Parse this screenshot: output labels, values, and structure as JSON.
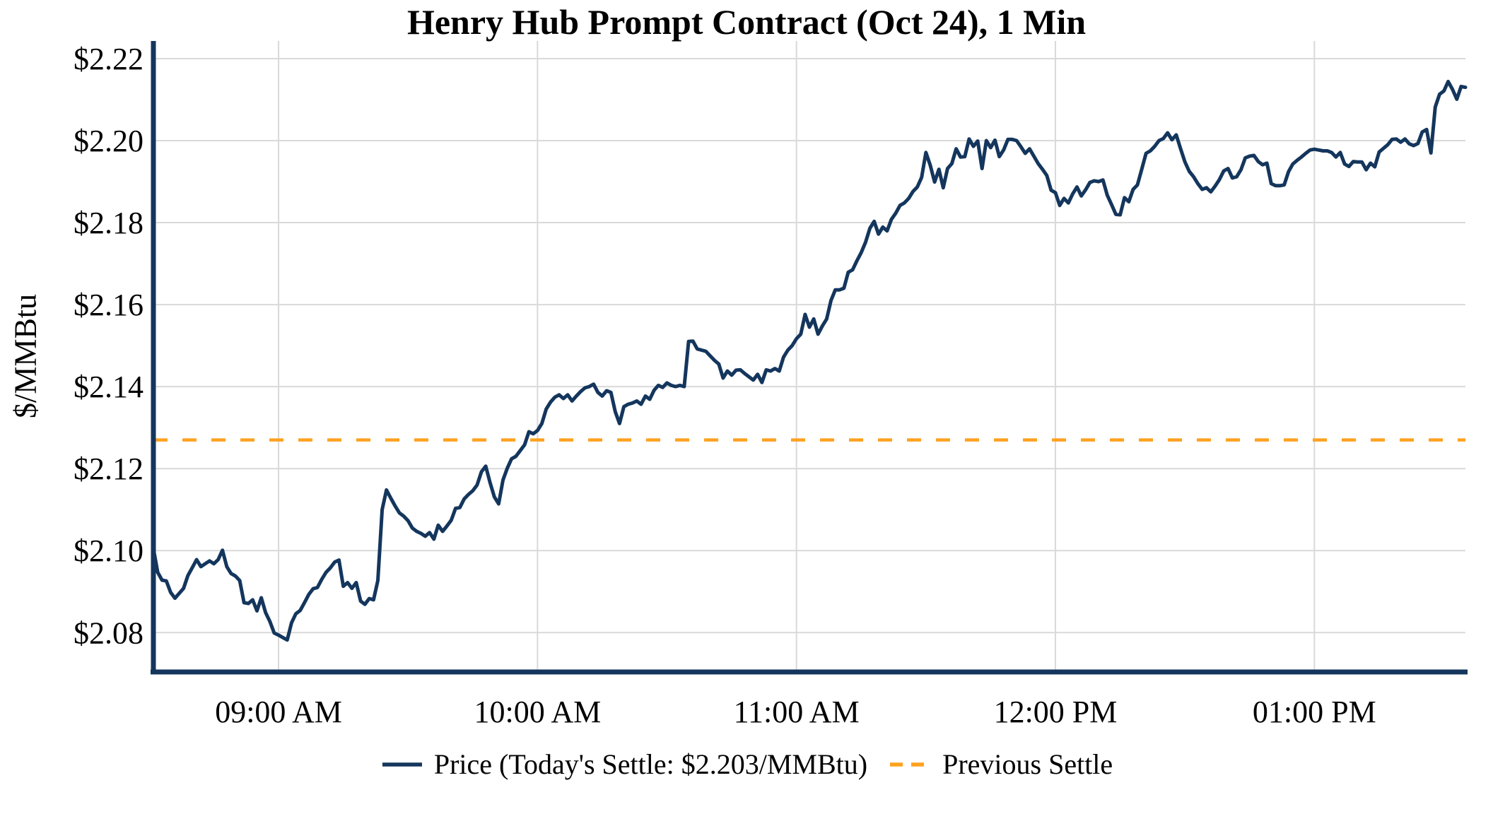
{
  "title": "Henry Hub Prompt Contract (Oct 24), 1 Min",
  "y_axis_label": "$/MMBtu",
  "legend": {
    "price_label": "Price (Today's Settle: $2.203/MMBtu)",
    "previous_settle_label": "Previous Settle"
  },
  "colors": {
    "price_line": "#14365D",
    "previous_settle_line": "#FFA11E",
    "gridline": "#D9D9D9",
    "axis_spine": "#14365D",
    "text": "#000000",
    "background": "#FFFFFF"
  },
  "chart_data": {
    "type": "line",
    "title": "Henry Hub Prompt Contract (Oct 24), 1 Min",
    "xlabel": "",
    "ylabel": "$/MMBtu",
    "grid": true,
    "legend_position": "bottom-center",
    "today_settle_value": 2.203,
    "previous_settle_value": 2.127,
    "ylim": [
      2.0704,
      2.2243
    ],
    "xlim_minutes_of_day": [
      511,
      815
    ],
    "x_ticks": [
      {
        "label": "09:00 AM",
        "minute": 540
      },
      {
        "label": "10:00 AM",
        "minute": 600
      },
      {
        "label": "11:00 AM",
        "minute": 660
      },
      {
        "label": "12:00 PM",
        "minute": 720
      },
      {
        "label": "01:00 PM",
        "minute": 780
      }
    ],
    "y_ticks": [
      {
        "label": "$2.08",
        "value": 2.08
      },
      {
        "label": "$2.10",
        "value": 2.1
      },
      {
        "label": "$2.12",
        "value": 2.12
      },
      {
        "label": "$2.14",
        "value": 2.14
      },
      {
        "label": "$2.16",
        "value": 2.16
      },
      {
        "label": "$2.18",
        "value": 2.18
      },
      {
        "label": "$2.20",
        "value": 2.2
      },
      {
        "label": "$2.22",
        "value": 2.22
      }
    ],
    "series": [
      {
        "name": "Price",
        "kind": "line",
        "start_time_label": "08:31 AM",
        "end_time_label": "01:35 PM",
        "start_minute_of_day": 511,
        "interval_minutes": 1,
        "values": [
          2.1005,
          2.0947,
          2.0928,
          2.0926,
          2.0898,
          2.0884,
          2.0896,
          2.0908,
          2.0939,
          2.0958,
          2.0978,
          2.0961,
          2.0968,
          2.0975,
          2.0968,
          2.0978,
          2.1001,
          2.0961,
          2.0944,
          2.0938,
          2.0927,
          2.0873,
          2.0871,
          2.088,
          2.0853,
          2.0885,
          2.0849,
          2.0827,
          2.0799,
          2.0794,
          2.0788,
          2.0782,
          2.0824,
          2.0846,
          2.0854,
          2.0873,
          2.0893,
          2.0907,
          2.091,
          2.093,
          2.0947,
          2.0958,
          2.0972,
          2.0977,
          2.0913,
          2.0922,
          2.0908,
          2.0922,
          2.0877,
          2.0869,
          2.0883,
          2.088,
          2.0927,
          2.11,
          2.1148,
          2.1128,
          2.1109,
          2.1092,
          2.1084,
          2.1073,
          2.1055,
          2.1047,
          2.1042,
          2.1035,
          2.1044,
          2.1028,
          2.1062,
          2.1047,
          2.106,
          2.1074,
          2.1103,
          2.1105,
          2.1126,
          2.1137,
          2.1146,
          2.116,
          2.1192,
          2.1206,
          2.1166,
          2.1131,
          2.1114,
          2.1172,
          2.1201,
          2.1224,
          2.123,
          2.1244,
          2.1258,
          2.129,
          2.1285,
          2.1293,
          2.131,
          2.1345,
          2.1362,
          2.1374,
          2.138,
          2.1371,
          2.138,
          2.1365,
          2.1377,
          2.1388,
          2.1397,
          2.14,
          2.1406,
          2.1386,
          2.1377,
          2.139,
          2.1386,
          2.1339,
          2.131,
          2.1351,
          2.1357,
          2.136,
          2.1365,
          2.1357,
          2.1377,
          2.1369,
          2.1391,
          2.1403,
          2.1398,
          2.1409,
          2.1403,
          2.14,
          2.1403,
          2.14,
          2.151,
          2.1511,
          2.1492,
          2.1489,
          2.1486,
          2.1475,
          2.1464,
          2.1455,
          2.1421,
          2.1438,
          2.1428,
          2.144,
          2.1441,
          2.1432,
          2.1424,
          2.1416,
          2.143,
          2.141,
          2.1441,
          2.1438,
          2.1444,
          2.1438,
          2.1472,
          2.1489,
          2.15,
          2.1517,
          2.1528,
          2.1576,
          2.1545,
          2.1565,
          2.1528,
          2.1548,
          2.1565,
          2.161,
          2.1636,
          2.1636,
          2.164,
          2.1679,
          2.1685,
          2.1707,
          2.1727,
          2.1752,
          2.1786,
          2.1803,
          2.1772,
          2.1789,
          2.178,
          2.1808,
          2.1823,
          2.1842,
          2.1848,
          2.1859,
          2.1876,
          2.1887,
          2.191,
          2.1971,
          2.194,
          2.1899,
          2.193,
          2.1885,
          2.1932,
          2.1944,
          2.198,
          2.196,
          2.1961,
          2.2004,
          2.1986,
          2.1999,
          2.1932,
          2.2,
          2.1983,
          2.2001,
          2.1961,
          2.1977,
          2.2003,
          2.2003,
          2.2,
          2.1985,
          2.1969,
          2.198,
          2.1962,
          2.1944,
          2.193,
          2.1915,
          2.1879,
          2.1873,
          2.1842,
          2.1859,
          2.1848,
          2.187,
          2.1887,
          2.1865,
          2.188,
          2.1898,
          2.1902,
          2.19,
          2.1904,
          2.1867,
          2.1844,
          2.182,
          2.1819,
          2.1861,
          2.1851,
          2.1881,
          2.1892,
          2.193,
          2.1969,
          2.1975,
          2.1986,
          2.2,
          2.2005,
          2.2019,
          2.2002,
          2.2014,
          2.198,
          2.1948,
          2.1925,
          2.1912,
          2.1895,
          2.1881,
          2.1885,
          2.1875,
          2.1889,
          2.1905,
          2.1926,
          2.1932,
          2.1909,
          2.1912,
          2.1929,
          2.1958,
          2.1962,
          2.1964,
          2.1949,
          2.1941,
          2.1945,
          2.1895,
          2.189,
          2.189,
          2.1892,
          2.1924,
          2.1943,
          2.1952,
          2.196,
          2.1969,
          2.1977,
          2.1979,
          2.1977,
          2.1975,
          2.1975,
          2.1971,
          2.196,
          2.1971,
          2.1943,
          2.1937,
          2.1949,
          2.1948,
          2.1948,
          2.1929,
          2.1945,
          2.1936,
          2.1972,
          2.1981,
          2.199,
          2.2003,
          2.2004,
          2.1996,
          2.2004,
          2.1992,
          2.1988,
          2.1993,
          2.2021,
          2.2027,
          2.197,
          2.2082,
          2.2113,
          2.2121,
          2.2144,
          2.2125,
          2.2101,
          2.2132,
          2.213
        ]
      },
      {
        "name": "Previous Settle",
        "kind": "horizontal-line",
        "style": "dashed",
        "value": 2.127
      }
    ]
  }
}
